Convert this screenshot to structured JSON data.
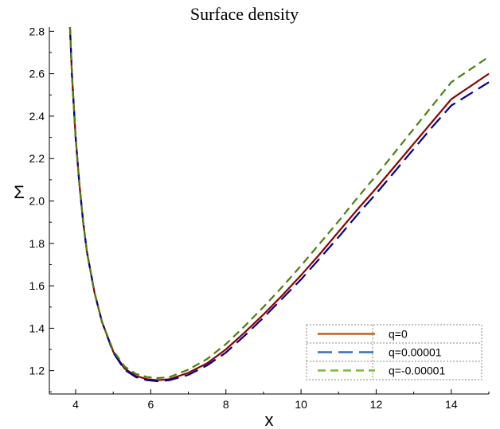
{
  "chart_data": {
    "type": "line",
    "title": "Surface density",
    "xlabel": "x",
    "ylabel": "Σ",
    "xlim": [
      3.3,
      15
    ],
    "ylim": [
      1.09,
      2.82
    ],
    "xticks": [
      4,
      6,
      8,
      10,
      12,
      14
    ],
    "xtick_labels": [
      "4",
      "6",
      "8",
      "10",
      "12",
      "14"
    ],
    "yticks": [
      1.2,
      1.4,
      1.6,
      1.8,
      2.0,
      2.2,
      2.4,
      2.6,
      2.8
    ],
    "ytick_labels": [
      "1.2",
      "1.4",
      "1.6",
      "1.8",
      "2.0",
      "2.2",
      "2.4",
      "2.6",
      "2.8"
    ],
    "grid": false,
    "legend_position": "bottom-right",
    "series": [
      {
        "name": "q=0",
        "color": "#8B0000",
        "legend_color": "#C0601A",
        "dash": "solid",
        "x": [
          3.85,
          3.9,
          4.0,
          4.1,
          4.2,
          4.3,
          4.5,
          4.7,
          5.0,
          5.3,
          5.6,
          5.9,
          6.2,
          6.5,
          7.0,
          7.5,
          8.0,
          8.5,
          9.0,
          9.5,
          10.0,
          10.5,
          11.0,
          11.5,
          12.0,
          12.5,
          13.0,
          13.5,
          14.0,
          14.5,
          15.0
        ],
        "y": [
          2.82,
          2.6,
          2.3,
          2.08,
          1.9,
          1.76,
          1.57,
          1.43,
          1.29,
          1.21,
          1.175,
          1.16,
          1.155,
          1.16,
          1.19,
          1.235,
          1.3,
          1.38,
          1.465,
          1.555,
          1.65,
          1.75,
          1.855,
          1.96,
          2.06,
          2.165,
          2.27,
          2.375,
          2.48,
          2.54,
          2.6
        ]
      },
      {
        "name": "q=0.00001",
        "color": "#00008B",
        "legend_color": "#3A6EB5",
        "dash": "long",
        "x": [
          3.85,
          3.9,
          4.0,
          4.1,
          4.2,
          4.3,
          4.5,
          4.7,
          5.0,
          5.3,
          5.6,
          5.9,
          6.2,
          6.5,
          7.0,
          7.5,
          8.0,
          8.5,
          9.0,
          9.5,
          10.0,
          10.5,
          11.0,
          11.5,
          12.0,
          12.5,
          13.0,
          13.5,
          14.0,
          14.5,
          15.0
        ],
        "y": [
          2.82,
          2.6,
          2.3,
          2.08,
          1.9,
          1.76,
          1.57,
          1.43,
          1.285,
          1.205,
          1.17,
          1.155,
          1.15,
          1.155,
          1.18,
          1.225,
          1.285,
          1.365,
          1.45,
          1.54,
          1.63,
          1.73,
          1.83,
          1.935,
          2.035,
          2.14,
          2.245,
          2.35,
          2.45,
          2.505,
          2.56
        ]
      },
      {
        "name": "q=-0.00001",
        "color": "#4E7F10",
        "legend_color": "#7AB840",
        "dash": "short",
        "x": [
          3.85,
          3.9,
          4.0,
          4.1,
          4.2,
          4.3,
          4.5,
          4.7,
          5.0,
          5.3,
          5.6,
          5.9,
          6.2,
          6.5,
          7.0,
          7.5,
          8.0,
          8.5,
          9.0,
          9.5,
          10.0,
          10.5,
          11.0,
          11.5,
          12.0,
          12.5,
          13.0,
          13.5,
          14.0,
          14.5,
          15.0
        ],
        "y": [
          2.82,
          2.6,
          2.3,
          2.08,
          1.9,
          1.76,
          1.57,
          1.43,
          1.295,
          1.22,
          1.185,
          1.17,
          1.165,
          1.17,
          1.205,
          1.255,
          1.325,
          1.41,
          1.5,
          1.595,
          1.695,
          1.8,
          1.905,
          2.015,
          2.12,
          2.23,
          2.34,
          2.45,
          2.56,
          2.62,
          2.68
        ]
      }
    ]
  }
}
